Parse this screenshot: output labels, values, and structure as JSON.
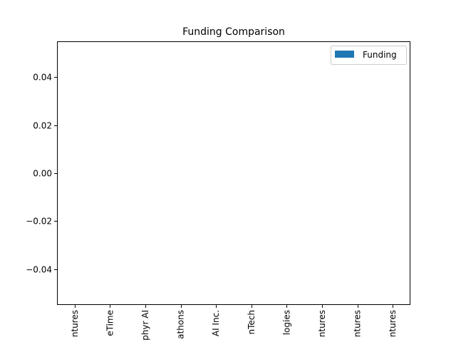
{
  "chart_data": {
    "type": "bar",
    "title": "Funding Comparison",
    "xlabel": "",
    "ylabel": "",
    "categories": [
      "ntures",
      "eTime",
      "phyr AI",
      "athons",
      "AI Inc.",
      "nTech",
      "logies",
      "ntures",
      "ntures",
      "ntures"
    ],
    "series": [
      {
        "name": "Funding",
        "values": [
          0,
          0,
          0,
          0,
          0,
          0,
          0,
          0,
          0,
          0
        ],
        "color": "#1f77b4"
      }
    ],
    "ylim": [
      -0.055,
      0.055
    ],
    "yticks": [
      -0.04,
      -0.02,
      0.0,
      0.02,
      0.04
    ],
    "ytick_labels": [
      "−0.04",
      "−0.02",
      "0.00",
      "0.02",
      "0.04"
    ],
    "grid": false,
    "legend_position": "upper right"
  }
}
